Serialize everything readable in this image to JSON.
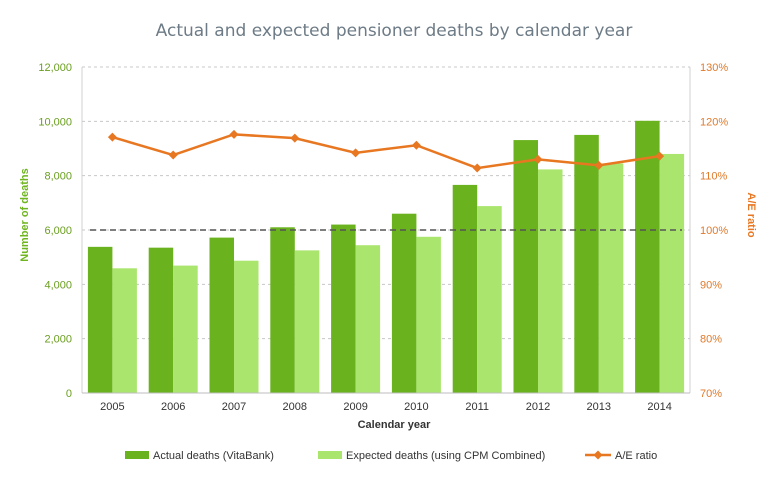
{
  "chart_data": {
    "type": "bar",
    "title": "Actual and expected pensioner deaths by calendar year",
    "xlabel": "Calendar year",
    "ylabel": "Number of deaths",
    "y2label": "A/E ratio",
    "categories": [
      "2005",
      "2006",
      "2007",
      "2008",
      "2009",
      "2010",
      "2011",
      "2012",
      "2013",
      "2014"
    ],
    "ylim": [
      0,
      12000
    ],
    "y_ticks": [
      "0",
      "2,000",
      "4,000",
      "6,000",
      "8,000",
      "10,000",
      "12,000"
    ],
    "y2lim": [
      70,
      130
    ],
    "y2_ticks": [
      "70%",
      "80%",
      "90%",
      "100%",
      "110%",
      "120%",
      "130%"
    ],
    "series": [
      {
        "name": "Actual deaths (VitaBank)",
        "type": "bar",
        "color": "#6ab31e",
        "values": [
          5380,
          5350,
          5720,
          6100,
          6200,
          6600,
          7660,
          9310,
          9500,
          10020
        ]
      },
      {
        "name": "Expected deaths (using CPM Combined)",
        "type": "bar",
        "color": "#aae56e",
        "values": [
          4590,
          4690,
          4870,
          5250,
          5440,
          5750,
          6880,
          8230,
          8450,
          8800
        ]
      },
      {
        "name": "A/E ratio",
        "type": "line",
        "axis": "right",
        "color": "#e87722",
        "marker": "diamond",
        "values": [
          117.1,
          113.8,
          117.6,
          116.9,
          114.2,
          115.6,
          111.4,
          113.0,
          111.9,
          113.6
        ]
      }
    ],
    "reference_line": {
      "axis": "right",
      "value": 100,
      "style": "dashed",
      "color": "#555555"
    },
    "grid": true,
    "legend": "bottom"
  }
}
